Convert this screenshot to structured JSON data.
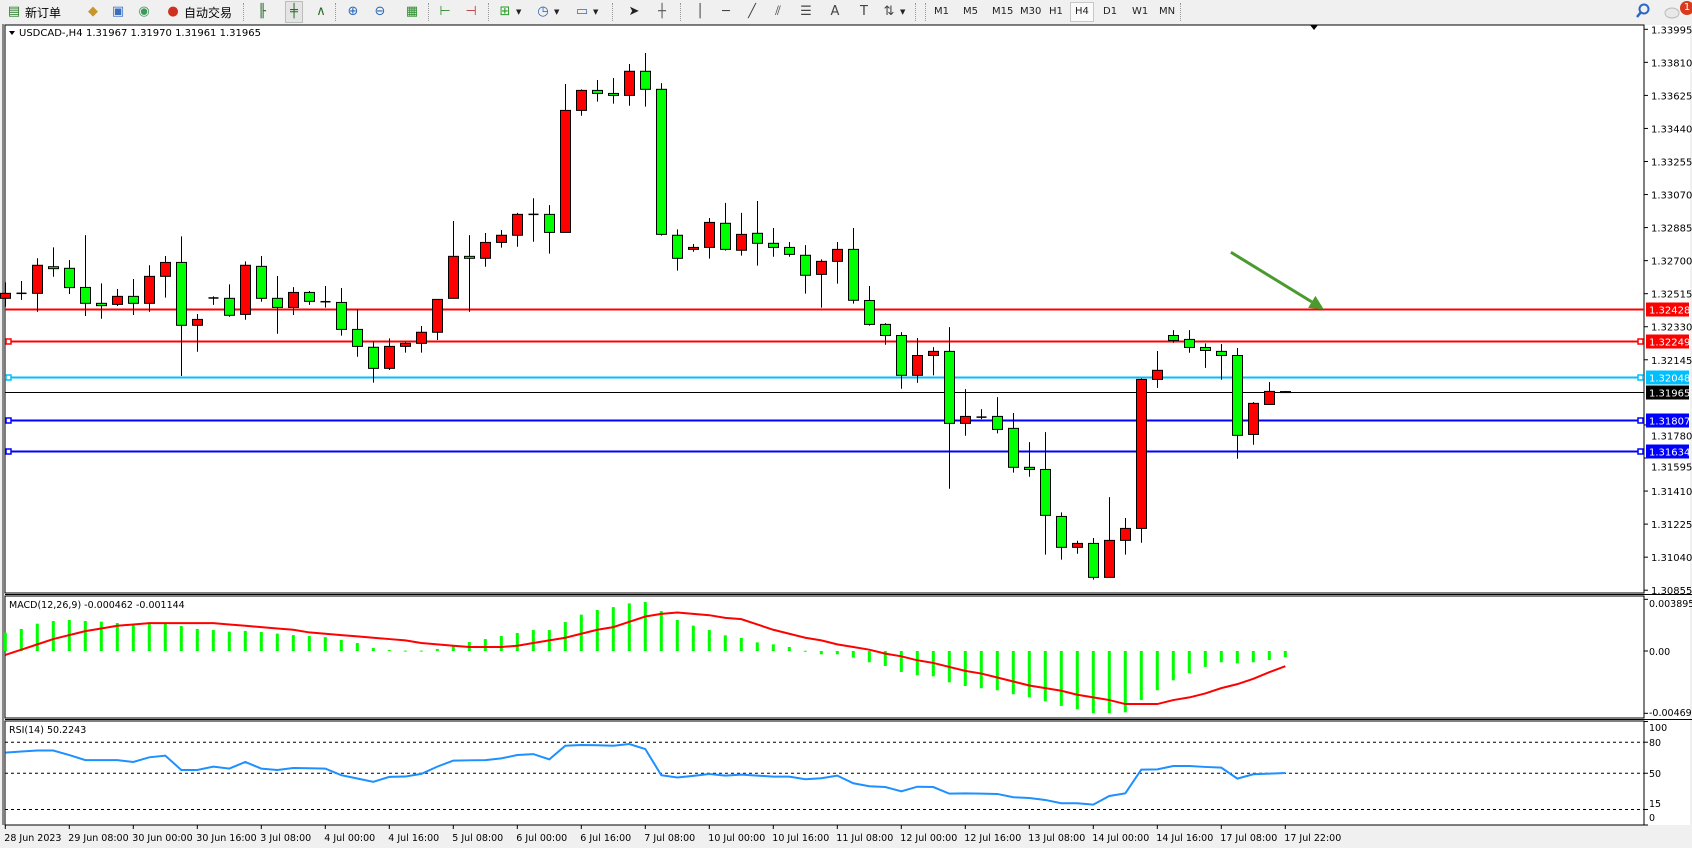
{
  "toolbar": {
    "items": [
      {
        "name": "new-order-button",
        "icon": "new-order-icon",
        "glyph": "▤",
        "color": "#2a7a2a",
        "label": "新订单"
      },
      {
        "name": "metaeditor-button",
        "icon": "metaeditor-book-icon",
        "glyph": "◆",
        "color": "#c8962a"
      },
      {
        "name": "data-window-button",
        "icon": "data-window-icon",
        "glyph": "▣",
        "color": "#3a6fc0"
      },
      {
        "name": "signals-button",
        "icon": "signal-icon",
        "glyph": "◉",
        "color": "#3a9a5a"
      },
      {
        "name": "auto-trading-button",
        "icon": "auto-trading-icon",
        "glyph": "●",
        "color": "#d03020",
        "label": "自动交易"
      },
      {
        "name": "bar-chart-button",
        "icon": "bar-chart-icon",
        "glyph": "╟",
        "color": "#2a6a2a"
      },
      {
        "name": "candlestick-chart-button",
        "icon": "candlestick-icon",
        "glyph": "╪",
        "color": "#2a6a2a",
        "active": true
      },
      {
        "name": "line-chart-button",
        "icon": "line-chart-icon",
        "glyph": "∧",
        "color": "#2a6a2a"
      },
      {
        "name": "zoom-in-button",
        "icon": "zoom-in-icon",
        "glyph": "⊕",
        "color": "#2a66b8"
      },
      {
        "name": "zoom-out-button",
        "icon": "zoom-out-icon",
        "glyph": "⊖",
        "color": "#2a66b8"
      },
      {
        "name": "tile-windows-button",
        "icon": "tile-windows-icon",
        "glyph": "▦",
        "color": "#2a8a2a"
      },
      {
        "name": "chart-shift-button",
        "icon": "chart-shift-icon",
        "glyph": "⊢",
        "color": "#2a8a2a"
      },
      {
        "name": "auto-scroll-button",
        "icon": "auto-scroll-icon",
        "glyph": "⊣",
        "color": "#c03030"
      },
      {
        "name": "indicators-button",
        "icon": "add-indicator-icon",
        "glyph": "⊞",
        "color": "#2a9a2a",
        "dropdown": true
      },
      {
        "name": "periods-button",
        "icon": "clock-icon",
        "glyph": "◷",
        "color": "#2a60b0",
        "dropdown": true
      },
      {
        "name": "templates-button",
        "icon": "template-icon",
        "glyph": "▭",
        "color": "#3070b0",
        "dropdown": true
      },
      {
        "name": "cursor-button",
        "icon": "cursor-arrow-icon",
        "glyph": "➤",
        "color": "#222"
      },
      {
        "name": "crosshair-button",
        "icon": "crosshair-icon",
        "glyph": "┼",
        "color": "#555"
      },
      {
        "name": "vertical-line-button",
        "icon": "vertical-line-icon",
        "glyph": "│",
        "color": "#444"
      },
      {
        "name": "horizontal-line-button",
        "icon": "horizontal-line-icon",
        "glyph": "─",
        "color": "#444"
      },
      {
        "name": "trendline-button",
        "icon": "trendline-icon",
        "glyph": "╱",
        "color": "#444"
      },
      {
        "name": "equidistant-channel-button",
        "icon": "channel-icon",
        "glyph": "⫽",
        "color": "#444"
      },
      {
        "name": "fibonacci-button",
        "icon": "fibonacci-icon",
        "glyph": "☰",
        "color": "#444"
      },
      {
        "name": "text-button",
        "icon": "text-icon",
        "glyph": "A",
        "color": "#444"
      },
      {
        "name": "text-label-button",
        "icon": "text-label-icon",
        "glyph": "T",
        "color": "#444"
      },
      {
        "name": "arrows-button",
        "icon": "arrows-icon",
        "glyph": "⇅",
        "color": "#444",
        "dropdown": true
      }
    ],
    "timeframes": [
      "M1",
      "M5",
      "M15",
      "M30",
      "H1",
      "H4",
      "D1",
      "W1",
      "MN"
    ],
    "active_timeframe": "H4",
    "notification_count": "1"
  },
  "header": {
    "symbol": "USDCAD-,H4",
    "ohlc": "1.31967 1.31970 1.31961 1.31965"
  },
  "colors": {
    "bull_body": "#ff0000",
    "bear_body": "#00ff00",
    "macd_histogram": "#00ff00",
    "macd_signal": "#ff0000",
    "rsi_line": "#1e90ff",
    "arrow": "#4a9a2e"
  },
  "chart_data": [
    {
      "type": "candlestick",
      "symbol": "USDCAD-",
      "timeframe": "H4",
      "ylim": [
        1.30855,
        1.33995
      ],
      "y_ticks": [
        "1.33995",
        "1.33810",
        "1.33625",
        "1.33440",
        "1.33255",
        "1.33070",
        "1.32885",
        "1.32700",
        "1.32515",
        "1.32330",
        "1.32145",
        "1.31780",
        "1.31595",
        "1.31410",
        "1.31225",
        "1.31040",
        "1.30855"
      ],
      "x_ticks": [
        "28 Jun 2023",
        "29 Jun 08:00",
        "30 Jun 00:00",
        "30 Jun 16:00",
        "3 Jul 08:00",
        "4 Jul 00:00",
        "4 Jul 16:00",
        "5 Jul 08:00",
        "6 Jul 00:00",
        "6 Jul 16:00",
        "7 Jul 08:00",
        "10 Jul 00:00",
        "10 Jul 16:00",
        "11 Jul 08:00",
        "12 Jul 00:00",
        "12 Jul 16:00",
        "13 Jul 08:00",
        "14 Jul 00:00",
        "14 Jul 16:00",
        "17 Jul 08:00",
        "17 Jul 22:00"
      ],
      "ohlc": [
        [
          1.32489,
          1.32578,
          1.32442,
          1.32517
        ],
        [
          1.32517,
          1.32586,
          1.3248,
          1.32517
        ],
        [
          1.32517,
          1.32713,
          1.32414,
          1.32674
        ],
        [
          1.32666,
          1.32774,
          1.3261,
          1.32655
        ],
        [
          1.32657,
          1.32703,
          1.32513,
          1.32549
        ],
        [
          1.3255,
          1.32843,
          1.3239,
          1.32461
        ],
        [
          1.32461,
          1.32573,
          1.32375,
          1.32448
        ],
        [
          1.32455,
          1.32541,
          1.32446,
          1.325
        ],
        [
          1.325,
          1.32597,
          1.32396,
          1.32461
        ],
        [
          1.32461,
          1.32674,
          1.32414,
          1.32612
        ],
        [
          1.32612,
          1.32726,
          1.32493,
          1.3269
        ],
        [
          1.3269,
          1.32836,
          1.32054,
          1.32338
        ],
        [
          1.32338,
          1.32401,
          1.3219,
          1.32371
        ],
        [
          1.32491,
          1.325,
          1.32452,
          1.32491
        ],
        [
          1.32489,
          1.32567,
          1.32386,
          1.32394
        ],
        [
          1.32399,
          1.32696,
          1.32369,
          1.32674
        ],
        [
          1.32668,
          1.32726,
          1.3247,
          1.32489
        ],
        [
          1.32489,
          1.32614,
          1.32291,
          1.32438
        ],
        [
          1.32438,
          1.32552,
          1.32396,
          1.32522
        ],
        [
          1.32522,
          1.3253,
          1.32452,
          1.32472
        ],
        [
          1.3247,
          1.32558,
          1.32437,
          1.3247
        ],
        [
          1.32466,
          1.32547,
          1.3228,
          1.32315
        ],
        [
          1.32315,
          1.32427,
          1.32162,
          1.3222
        ],
        [
          1.32215,
          1.32246,
          1.32017,
          1.32097
        ],
        [
          1.32097,
          1.32265,
          1.32088,
          1.3222
        ],
        [
          1.3222,
          1.32246,
          1.32185,
          1.32237
        ],
        [
          1.32237,
          1.32334,
          1.32185,
          1.32299
        ],
        [
          1.32299,
          1.32483,
          1.32256,
          1.32483
        ],
        [
          1.32489,
          1.32922,
          1.32489,
          1.32724
        ],
        [
          1.32724,
          1.32843,
          1.32414,
          1.32713
        ],
        [
          1.32713,
          1.32855,
          1.32666,
          1.32802
        ],
        [
          1.32802,
          1.32871,
          1.32773,
          1.32842
        ],
        [
          1.32842,
          1.32967,
          1.32778,
          1.32959
        ],
        [
          1.32959,
          1.33049,
          1.32806,
          1.32959
        ],
        [
          1.32959,
          1.33011,
          1.32739,
          1.32858
        ],
        [
          1.32858,
          1.33689,
          1.32858,
          1.33541
        ],
        [
          1.33541,
          1.33659,
          1.33511,
          1.33653
        ],
        [
          1.33653,
          1.33711,
          1.3359,
          1.33636
        ],
        [
          1.33636,
          1.33722,
          1.33579,
          1.33625
        ],
        [
          1.33625,
          1.33801,
          1.33567,
          1.3376
        ],
        [
          1.3376,
          1.33862,
          1.33562,
          1.33659
        ],
        [
          1.33659,
          1.33694,
          1.3284,
          1.32847
        ],
        [
          1.32842,
          1.32875,
          1.32644,
          1.32713
        ],
        [
          1.32763,
          1.32793,
          1.3275,
          1.32774
        ],
        [
          1.32774,
          1.32939,
          1.32711,
          1.32914
        ],
        [
          1.32909,
          1.33023,
          1.32756,
          1.32763
        ],
        [
          1.32758,
          1.32967,
          1.32728,
          1.32847
        ],
        [
          1.32853,
          1.33034,
          1.32672,
          1.32797
        ],
        [
          1.32797,
          1.32883,
          1.32722,
          1.32774
        ],
        [
          1.32774,
          1.32804,
          1.32722,
          1.32735
        ],
        [
          1.3273,
          1.32787,
          1.32515,
          1.32618
        ],
        [
          1.32623,
          1.32707,
          1.32437,
          1.32696
        ],
        [
          1.32696,
          1.32804,
          1.32571,
          1.32763
        ],
        [
          1.32763,
          1.32883,
          1.32459,
          1.32478
        ],
        [
          1.32477,
          1.32558,
          1.32336,
          1.32343
        ],
        [
          1.32343,
          1.3235,
          1.32229,
          1.32281
        ],
        [
          1.32281,
          1.323,
          1.31983,
          1.32058
        ],
        [
          1.32058,
          1.32267,
          1.32016,
          1.32169
        ],
        [
          1.32169,
          1.32216,
          1.32058,
          1.32192
        ],
        [
          1.32192,
          1.32328,
          1.31423,
          1.31789
        ],
        [
          1.31789,
          1.31981,
          1.3172,
          1.31828
        ],
        [
          1.31824,
          1.31869,
          1.31813,
          1.31824
        ],
        [
          1.31828,
          1.31936,
          1.31733,
          1.31755
        ],
        [
          1.31761,
          1.31847,
          1.31513,
          1.31543
        ],
        [
          1.31543,
          1.31684,
          1.3149,
          1.31531
        ],
        [
          1.31531,
          1.3174,
          1.31054,
          1.31274
        ],
        [
          1.31268,
          1.31291,
          1.31026,
          1.31095
        ],
        [
          1.31095,
          1.31132,
          1.31059,
          1.31117
        ],
        [
          1.31117,
          1.31147,
          1.30914,
          1.30927
        ],
        [
          1.30927,
          1.31376,
          1.30927,
          1.31134
        ],
        [
          1.31134,
          1.31259,
          1.31054,
          1.31201
        ],
        [
          1.31201,
          1.32041,
          1.31121,
          1.32035
        ],
        [
          1.32035,
          1.32194,
          1.31988,
          1.32086
        ],
        [
          1.32281,
          1.32311,
          1.3224,
          1.32253
        ],
        [
          1.32259,
          1.32311,
          1.32184,
          1.32214
        ],
        [
          1.32214,
          1.32237,
          1.321,
          1.32197
        ],
        [
          1.32192,
          1.32233,
          1.32033,
          1.32169
        ],
        [
          1.32169,
          1.32211,
          1.31591,
          1.31722
        ],
        [
          1.31727,
          1.31908,
          1.31669,
          1.31901
        ],
        [
          1.31895,
          1.3202,
          1.31895,
          1.31968
        ],
        [
          1.31967,
          1.3197,
          1.31961,
          1.31965
        ]
      ],
      "horizontal_lines": [
        {
          "price": "1.32428",
          "color": "#ff0000",
          "handles": false
        },
        {
          "price": "1.32249",
          "color": "#ff0000",
          "handles": true
        },
        {
          "price": "1.32048",
          "color": "#00bfff",
          "handles": true
        },
        {
          "price": "1.31965",
          "color": "#000000",
          "handles": false,
          "bid": true
        },
        {
          "price": "1.31807",
          "color": "#0000ff",
          "handles": true
        },
        {
          "price": "1.31634",
          "color": "#0000ff",
          "handles": true
        }
      ],
      "annotation_arrow": {
        "from_bar": 77.6,
        "from_price": 1.32747,
        "to_bar": 83.4,
        "to_price": 1.32428
      }
    },
    {
      "type": "bar+line",
      "title": "MACD(12,26,9) -0.000462 -0.001144",
      "ylim": [
        -0.004699,
        0.003895
      ],
      "y_ticks": [
        "0.003895",
        "0.00",
        "-0.004699"
      ],
      "histogram": [
        0.00138,
        0.00166,
        0.00206,
        0.00226,
        0.00234,
        0.00226,
        0.00221,
        0.00211,
        0.00201,
        0.00206,
        0.00208,
        0.00188,
        0.00166,
        0.00158,
        0.00146,
        0.00151,
        0.00143,
        0.00131,
        0.0012,
        0.00113,
        0.00105,
        0.00083,
        0.0006,
        0.00023,
        8e-05,
        3e-05,
        3e-05,
        0.00015,
        0.00038,
        0.00068,
        0.0009,
        0.00113,
        0.00136,
        0.00158,
        0.00158,
        0.00218,
        0.00274,
        0.00309,
        0.00331,
        0.00359,
        0.00369,
        0.00301,
        0.00234,
        0.00191,
        0.00158,
        0.00118,
        0.00098,
        0.00065,
        0.0005,
        0.0003,
        2e-05,
        -0.00025,
        -0.00025,
        -0.0005,
        -0.00085,
        -0.00113,
        -0.00158,
        -0.00183,
        -0.00191,
        -0.00236,
        -0.00264,
        -0.00281,
        -0.00296,
        -0.00326,
        -0.00349,
        -0.00379,
        -0.00414,
        -0.00439,
        -0.00469,
        -0.00469,
        -0.00462,
        -0.00369,
        -0.00296,
        -0.00221,
        -0.00168,
        -0.0012,
        -0.00085,
        -0.00093,
        -0.00085,
        -0.00068,
        -0.000462
      ],
      "signal": [
        -0.0003,
        0.0001,
        0.0005,
        0.0009,
        0.0012,
        0.0015,
        0.0017,
        0.0019,
        0.002,
        0.0021,
        0.0021,
        0.0021,
        0.0021,
        0.0021,
        0.002,
        0.0019,
        0.0018,
        0.0017,
        0.0016,
        0.0014,
        0.0013,
        0.0012,
        0.0011,
        0.001,
        0.0009,
        0.0008,
        0.0006,
        0.0005,
        0.0004,
        0.0003,
        0.0003,
        0.0003,
        0.0004,
        0.0006,
        0.0008,
        0.001,
        0.0013,
        0.0016,
        0.0018,
        0.0022,
        0.0026,
        0.0028,
        0.0029,
        0.0028,
        0.0027,
        0.0025,
        0.0024,
        0.002,
        0.0016,
        0.0013,
        0.001,
        0.0008,
        0.0005,
        0.0003,
        0.0001,
        -0.0002,
        -0.0004,
        -0.0007,
        -0.0009,
        -0.0012,
        -0.0015,
        -0.0017,
        -0.002,
        -0.0023,
        -0.0026,
        -0.0028,
        -0.003,
        -0.0033,
        -0.0035,
        -0.0037,
        -0.004,
        -0.004,
        -0.004,
        -0.0037,
        -0.0035,
        -0.0032,
        -0.0028,
        -0.0025,
        -0.0021,
        -0.0016,
        -0.001144
      ]
    },
    {
      "type": "line",
      "title": "RSI(14) 50.2243",
      "ylim": [
        0,
        100
      ],
      "y_ticks": [
        "100",
        "80",
        "50",
        "15",
        "0"
      ],
      "levels": [
        80,
        50,
        15
      ],
      "values": [
        69.9,
        71,
        72,
        72,
        67.6,
        62.7,
        62.7,
        62.7,
        60.9,
        65.4,
        67,
        53.2,
        53.2,
        56.4,
        54.5,
        60.9,
        54.5,
        53.2,
        55.1,
        54.8,
        54.5,
        48.1,
        44.9,
        41.7,
        46.5,
        46.8,
        49.4,
        56.4,
        62.2,
        62.5,
        62.7,
        64.4,
        67.6,
        68.5,
        63.4,
        76.6,
        77.3,
        77,
        76.6,
        78.2,
        73.4,
        48.1,
        45.9,
        47.5,
        49.3,
        47.7,
        48.7,
        47.7,
        46.7,
        46.7,
        44.2,
        45.2,
        47.7,
        40.3,
        37.4,
        36.7,
        32.5,
        37,
        36.7,
        30.3,
        30.6,
        30.3,
        30,
        26.8,
        26.1,
        24.2,
        21,
        21,
        19.7,
        28,
        30.6,
        53.5,
        53.8,
        57,
        57,
        56.1,
        55.4,
        44.8,
        49,
        49.6,
        50.2243
      ]
    }
  ]
}
